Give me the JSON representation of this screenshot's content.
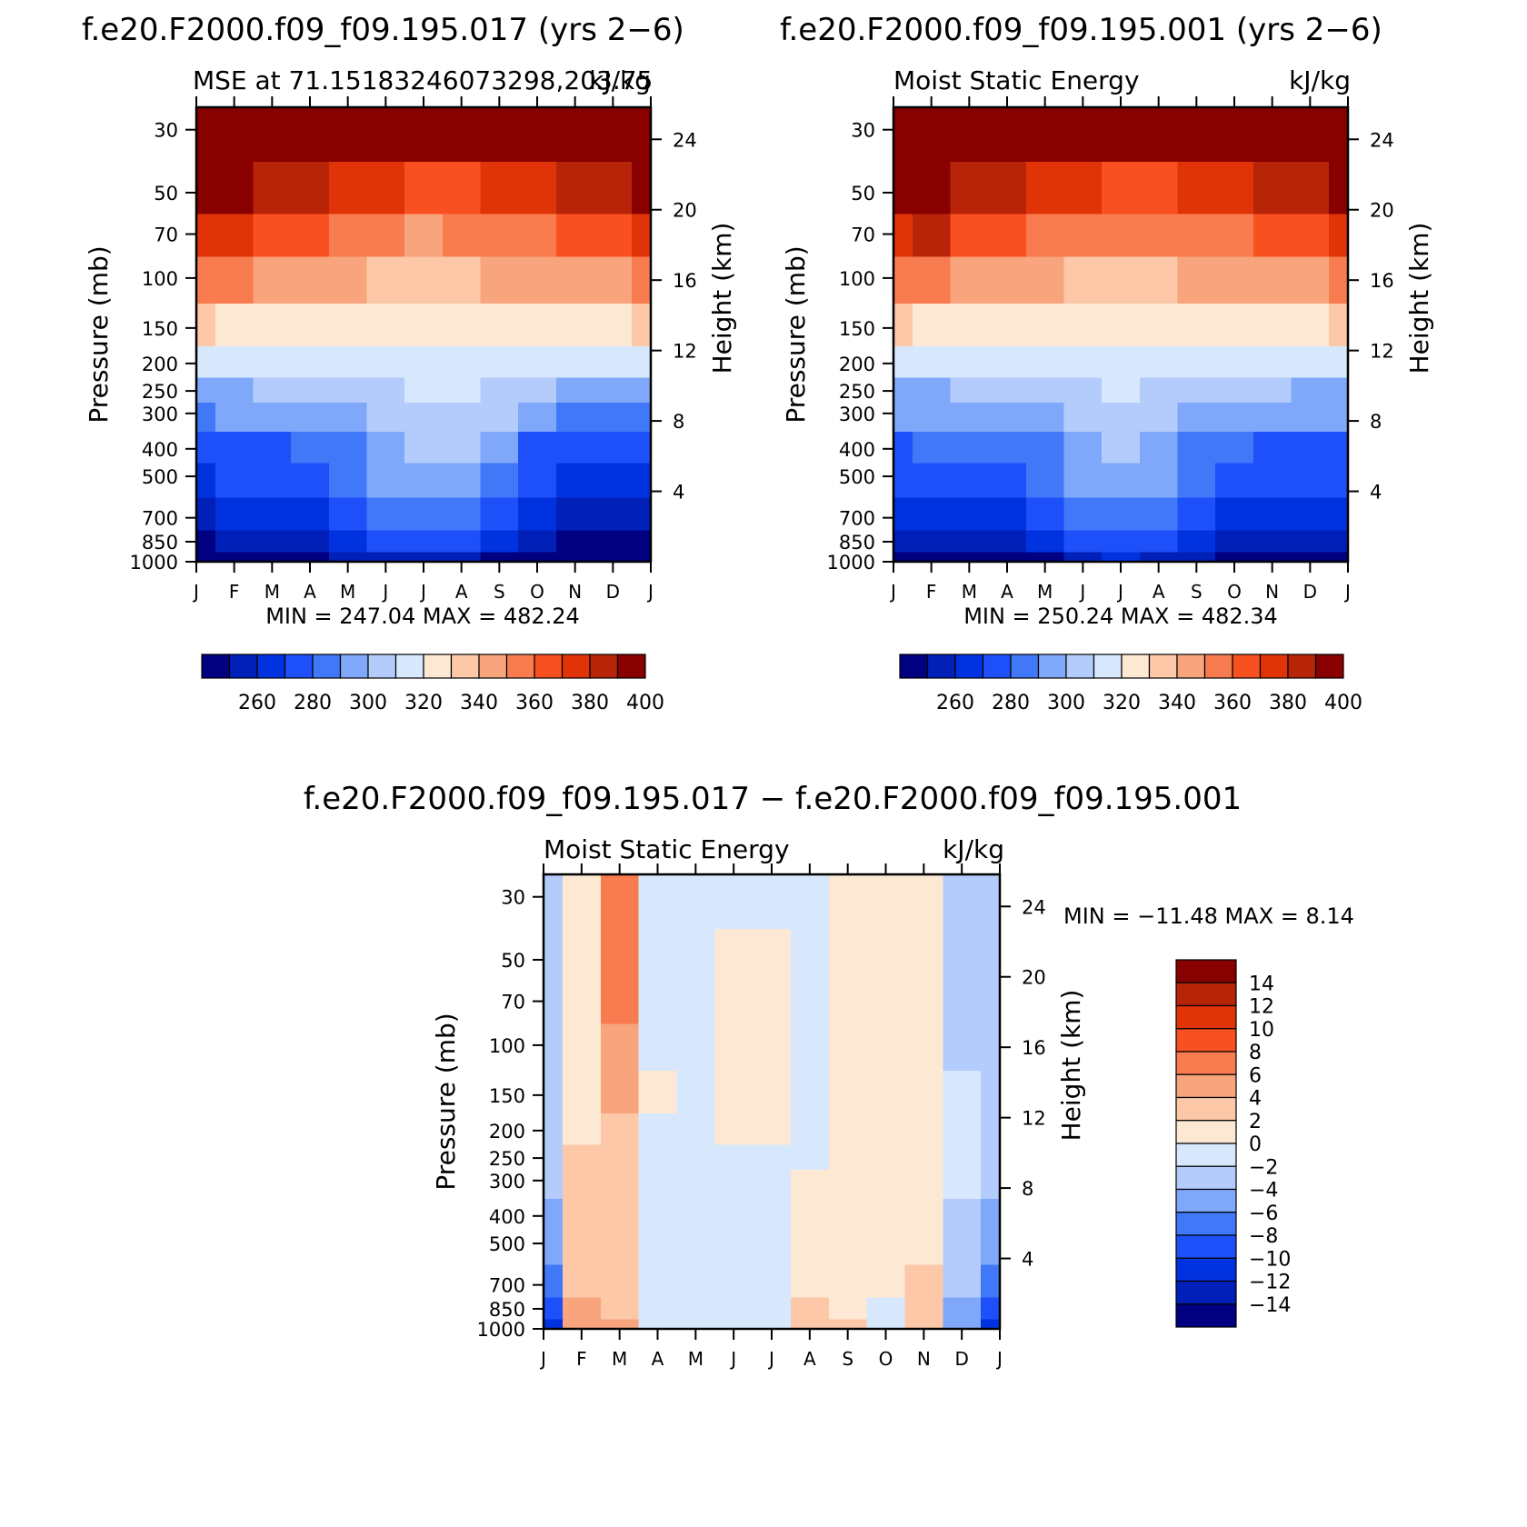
{
  "months": [
    "J",
    "F",
    "M",
    "A",
    "M",
    "J",
    "J",
    "A",
    "S",
    "O",
    "N",
    "D",
    "J"
  ],
  "pressure_ticks": [
    "30",
    "50",
    "70",
    "100",
    "150",
    "200",
    "250",
    "300",
    "400",
    "500",
    "700",
    "850",
    "1000"
  ],
  "pressure_values": [
    30,
    50,
    70,
    100,
    150,
    200,
    250,
    300,
    400,
    500,
    700,
    850,
    1000
  ],
  "height_ticks": [
    "24",
    "20",
    "16",
    "12",
    "8",
    "4"
  ],
  "height_values": [
    24,
    20,
    16,
    12,
    8,
    4
  ],
  "pressure_label": "Pressure (mb)",
  "height_label": "Height (km)",
  "mse_colors": [
    "#000080",
    "#0020b8",
    "#0032e0",
    "#1e50fa",
    "#4078f8",
    "#80a8fa",
    "#b4ccfc",
    "#d8e8fc",
    "#fde8d4",
    "#fcc8a8",
    "#f8a47c",
    "#f87c50",
    "#f85020",
    "#e03408",
    "#b82408",
    "#880000"
  ],
  "diff_colors": [
    "#000080",
    "#0020b8",
    "#0032e0",
    "#1e50fa",
    "#4078f8",
    "#80a8fa",
    "#b4ccfc",
    "#d8e8fc",
    "#fde8d4",
    "#fcc8a8",
    "#f8a47c",
    "#f87c50",
    "#f85020",
    "#e03408",
    "#b82408",
    "#880000"
  ],
  "panel_a": {
    "header": "f.e20.F2000.f09_f09.195.017 (yrs 2−6)",
    "subtitle_left": "MSE at 71.15183246073298,203.75",
    "subtitle_right": "kJ/kg",
    "minmax": "MIN = 247.04  MAX = 482.24"
  },
  "panel_b": {
    "header": "f.e20.F2000.f09_f09.195.001 (yrs 2−6)",
    "subtitle_left": "Moist Static Energy",
    "subtitle_right": "kJ/kg",
    "minmax": "MIN = 250.24  MAX = 482.34"
  },
  "panel_c": {
    "header": "f.e20.F2000.f09_f09.195.017 − f.e20.F2000.f09_f09.195.001",
    "subtitle_left": "Moist Static Energy",
    "subtitle_right": "kJ/kg",
    "minmax": "MIN = −11.48  MAX =    8.14"
  },
  "mse_colorbar_labels": [
    "260",
    "280",
    "300",
    "320",
    "340",
    "360",
    "380",
    "400"
  ],
  "diff_colorbar_labels": [
    "14",
    "12",
    "10",
    "8",
    "6",
    "4",
    "2",
    "0",
    "−2",
    "−4",
    "−6",
    "−8",
    "−10",
    "−12",
    "−14"
  ],
  "chart_data": [
    {
      "type": "heatmap",
      "title": "f.e20.F2000.f09_f09.195.017 (yrs 2−6)",
      "subtitle": "MSE at 71.15183246073298,203.75",
      "units": "kJ/kg",
      "xlabel": "",
      "ylabel": "Pressure (mb)",
      "ylabel_right": "Height (km)",
      "x": [
        "J",
        "F",
        "M",
        "A",
        "M",
        "J",
        "J",
        "A",
        "S",
        "O",
        "N",
        "D",
        "J"
      ],
      "y_pressure": [
        1000,
        850,
        700,
        500,
        400,
        300,
        250,
        200,
        150,
        100,
        70,
        50,
        30
      ],
      "y_scale": "log",
      "levels": [
        260,
        270,
        280,
        290,
        300,
        310,
        320,
        330,
        340,
        350,
        360,
        370,
        380,
        390,
        400
      ],
      "min": 247.04,
      "max": 482.24,
      "values": [
        [
          250,
          252,
          253,
          253,
          260,
          269,
          269,
          268,
          259,
          255,
          252,
          251,
          250
        ],
        [
          257,
          261,
          262,
          263,
          272,
          282,
          283,
          282,
          271,
          262,
          259,
          257,
          257
        ],
        [
          268,
          270,
          272,
          274,
          284,
          294,
          295,
          294,
          283,
          273,
          268,
          267,
          268
        ],
        [
          278,
          281,
          283,
          285,
          293,
          303,
          306,
          305,
          294,
          283,
          279,
          278,
          278
        ],
        [
          285,
          287,
          289,
          291,
          299,
          308,
          312,
          311,
          300,
          289,
          285,
          284,
          285
        ],
        [
          299,
          300,
          301,
          303,
          308,
          314,
          318,
          317,
          310,
          302,
          299,
          299,
          299
        ],
        [
          308,
          309,
          310,
          311,
          314,
          318,
          320,
          320,
          316,
          311,
          309,
          308,
          308
        ],
        [
          322,
          322,
          323,
          324,
          326,
          328,
          329,
          329,
          327,
          324,
          323,
          322,
          322
        ],
        [
          340,
          339,
          338,
          337,
          336,
          335,
          334,
          335,
          336,
          337,
          338,
          339,
          340
        ],
        [
          362,
          360,
          356,
          354,
          351,
          348,
          346,
          347,
          350,
          353,
          356,
          358,
          362
        ],
        [
          385,
          381,
          372,
          370,
          366,
          362,
          359,
          360,
          364,
          368,
          371,
          375,
          385
        ],
        [
          405,
          404,
          394,
          390,
          385,
          380,
          375,
          376,
          381,
          387,
          391,
          398,
          405
        ],
        [
          440,
          438,
          432,
          428,
          422,
          418,
          415,
          416,
          420,
          425,
          430,
          436,
          440
        ]
      ]
    },
    {
      "type": "heatmap",
      "title": "f.e20.F2000.f09_f09.195.001 (yrs 2−6)",
      "subtitle": "Moist Static Energy",
      "units": "kJ/kg",
      "xlabel": "",
      "ylabel": "Pressure (mb)",
      "ylabel_right": "Height (km)",
      "x": [
        "J",
        "F",
        "M",
        "A",
        "M",
        "J",
        "J",
        "A",
        "S",
        "O",
        "N",
        "D",
        "J"
      ],
      "y_pressure": [
        1000,
        850,
        700,
        500,
        400,
        300,
        250,
        200,
        150,
        100,
        70,
        50,
        30
      ],
      "y_scale": "log",
      "levels": [
        260,
        270,
        280,
        290,
        300,
        310,
        320,
        330,
        340,
        350,
        360,
        370,
        380,
        390,
        400
      ],
      "min": 250.24,
      "max": 482.34,
      "values": [
        [
          255,
          256,
          254,
          252,
          259,
          268,
          270,
          268,
          261,
          256,
          254,
          254,
          255
        ],
        [
          264,
          266,
          265,
          264,
          272,
          282,
          285,
          282,
          273,
          266,
          263,
          263,
          264
        ],
        [
          274,
          276,
          275,
          274,
          283,
          293,
          297,
          293,
          283,
          276,
          273,
          273,
          274
        ],
        [
          283,
          285,
          285,
          286,
          292,
          302,
          307,
          304,
          293,
          285,
          282,
          282,
          283
        ],
        [
          289,
          291,
          291,
          292,
          298,
          307,
          312,
          309,
          298,
          290,
          288,
          288,
          289
        ],
        [
          301,
          302,
          302,
          303,
          307,
          313,
          318,
          315,
          308,
          302,
          300,
          300,
          301
        ],
        [
          309,
          309,
          310,
          311,
          314,
          318,
          321,
          319,
          315,
          311,
          310,
          309,
          309
        ],
        [
          322,
          322,
          323,
          324,
          326,
          328,
          329,
          328,
          326,
          324,
          323,
          322,
          322
        ],
        [
          340,
          339,
          338,
          337,
          336,
          335,
          334,
          335,
          336,
          337,
          338,
          339,
          340
        ],
        [
          362,
          362,
          357,
          355,
          352,
          349,
          347,
          348,
          351,
          354,
          356,
          358,
          362
        ],
        [
          386,
          392,
          376,
          372,
          367,
          363,
          360,
          361,
          365,
          369,
          372,
          375,
          386
        ],
        [
          405,
          412,
          398,
          392,
          387,
          382,
          377,
          378,
          383,
          388,
          392,
          396,
          405
        ],
        [
          440,
          440,
          434,
          430,
          424,
          420,
          416,
          417,
          421,
          426,
          431,
          436,
          440
        ]
      ]
    },
    {
      "type": "heatmap",
      "title": "f.e20.F2000.f09_f09.195.017 − f.e20.F2000.f09_f09.195.001",
      "subtitle": "Moist Static Energy",
      "units": "kJ/kg",
      "xlabel": "",
      "ylabel": "Pressure (mb)",
      "ylabel_right": "Height (km)",
      "x": [
        "J",
        "F",
        "M",
        "A",
        "M",
        "J",
        "J",
        "A",
        "S",
        "O",
        "N",
        "D",
        "J"
      ],
      "y_pressure": [
        1000,
        850,
        700,
        500,
        400,
        300,
        250,
        200,
        150,
        100,
        70,
        50,
        30
      ],
      "y_scale": "log",
      "levels": [
        -14,
        -12,
        -10,
        -8,
        -6,
        -4,
        -2,
        0,
        2,
        4,
        6,
        8,
        10,
        12,
        14
      ],
      "min": -11.48,
      "max": 8.14,
      "values": [
        [
          -11,
          5.5,
          5.5,
          -0.5,
          -0.5,
          -0.5,
          -0.5,
          3.5,
          2.5,
          -0.5,
          3,
          -6,
          -11
        ],
        [
          -10,
          4,
          3.5,
          -0.5,
          -0.5,
          -0.5,
          -0.5,
          3,
          1.5,
          -1,
          3,
          -5,
          -10
        ],
        [
          -8,
          3.5,
          3,
          -0.5,
          -0.5,
          -0.5,
          -0.5,
          1.5,
          1,
          0.5,
          2.5,
          -4,
          -8
        ],
        [
          -6,
          3,
          2.5,
          -0.5,
          -0.5,
          -0.5,
          -0.5,
          1,
          1,
          0.5,
          1.5,
          -3,
          -6
        ],
        [
          -5,
          3,
          2.5,
          -0.5,
          -0.5,
          -0.5,
          -0.5,
          1,
          1,
          1,
          1,
          -2.5,
          -5
        ],
        [
          -4,
          2.5,
          2.5,
          -0.5,
          -0.5,
          -0.5,
          -0.5,
          0.5,
          1,
          1,
          1,
          -2,
          -4
        ],
        [
          -3,
          2,
          2.5,
          -0.5,
          -0.5,
          -0.5,
          -0.5,
          -0.5,
          1,
          1,
          1,
          -2,
          -3
        ],
        [
          -3,
          1.5,
          3,
          -0.5,
          -0.5,
          1,
          1,
          -0.5,
          1,
          1,
          1,
          -2,
          -3
        ],
        [
          -3,
          1,
          4,
          0.5,
          -0.5,
          1,
          1,
          -0.5,
          1,
          1,
          1,
          -2,
          -3
        ],
        [
          -4,
          1,
          5,
          -1,
          -0.5,
          1,
          1,
          -0.5,
          1,
          1,
          1,
          -2.5,
          -4
        ],
        [
          -4,
          1,
          6,
          -2,
          -0.5,
          1,
          1,
          -0.5,
          1,
          1,
          1,
          -3,
          -4
        ],
        [
          -4,
          1,
          6,
          -2,
          -0.5,
          1,
          1,
          -0.5,
          1,
          1,
          1,
          -3.5,
          -4
        ],
        [
          -4,
          1,
          6,
          -2,
          -0.5,
          -0.5,
          -0.5,
          -0.5,
          1,
          1,
          1,
          -4,
          -4
        ]
      ]
    }
  ]
}
